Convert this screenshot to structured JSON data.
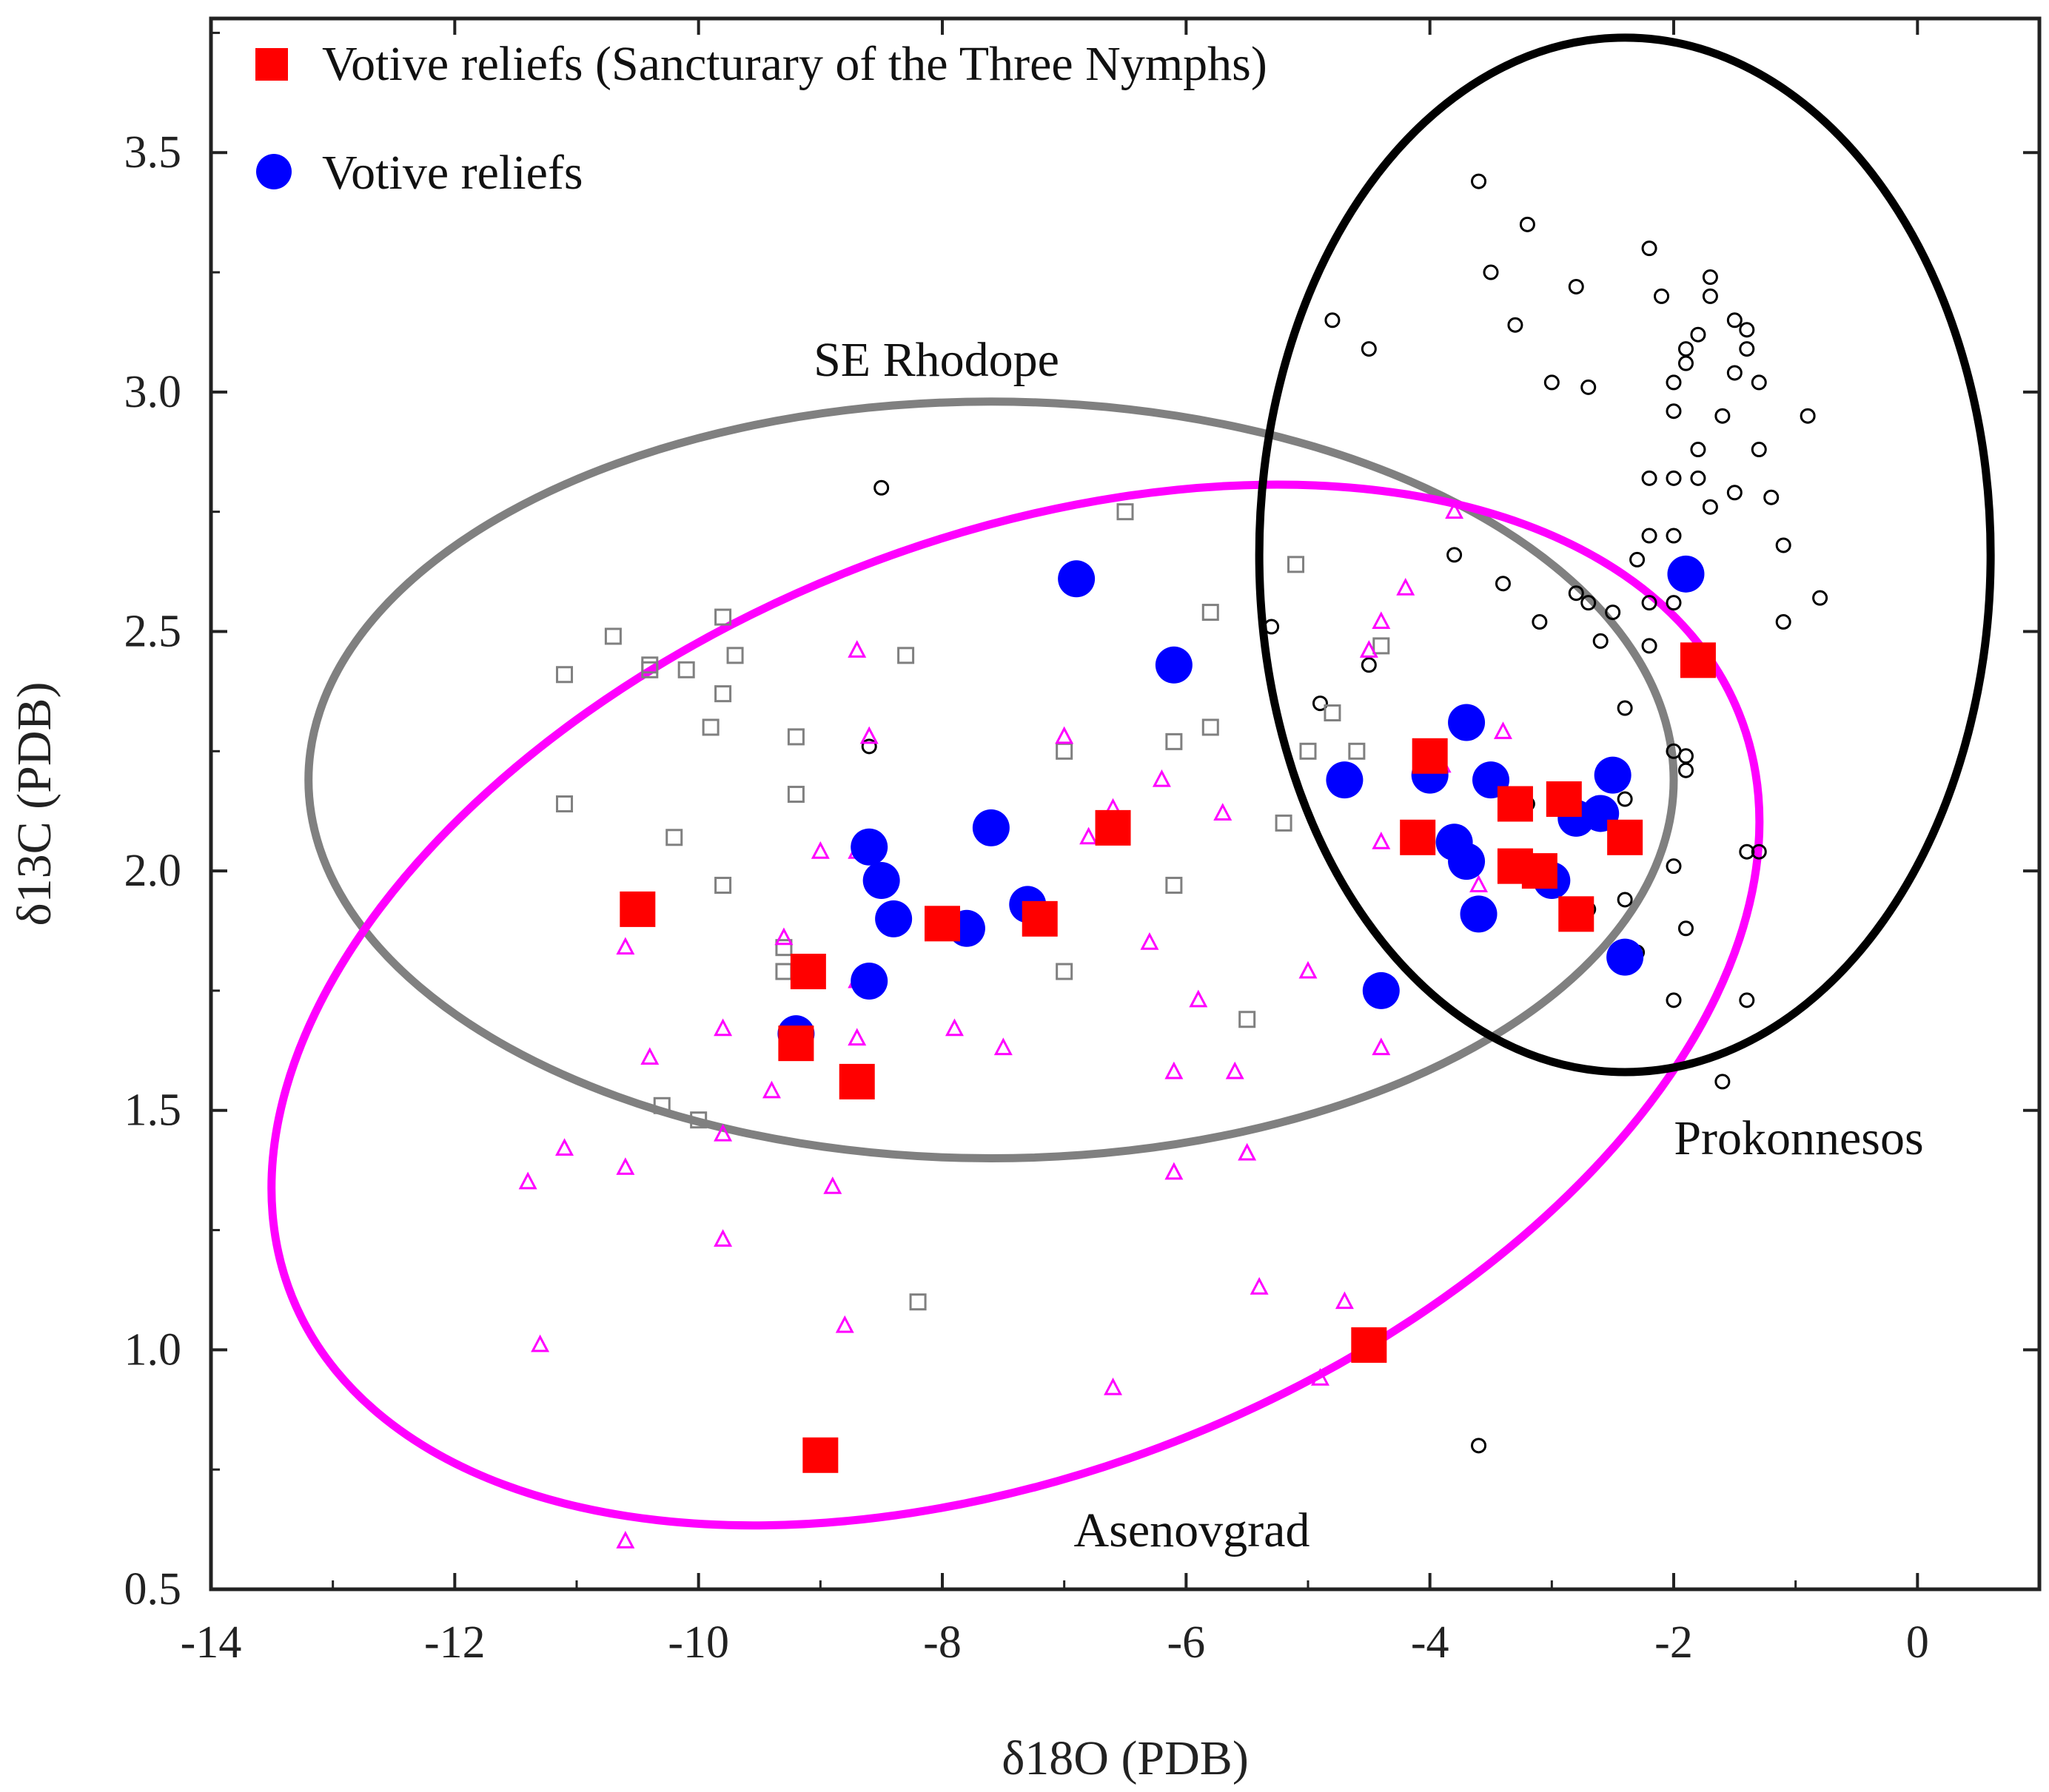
{
  "chart_data": {
    "type": "scatter",
    "xlabel": "δ18O (PDB)",
    "ylabel": "δ13C (PDB)",
    "xlim": [
      -14,
      1
    ],
    "ylim": [
      0.5,
      3.78
    ],
    "xticks": [
      -14,
      -12,
      -10,
      -8,
      -6,
      -4,
      -2,
      0
    ],
    "yticks": [
      0.5,
      1.0,
      1.5,
      2.0,
      2.5,
      3.0,
      3.5
    ],
    "grid": false,
    "legend_position": "top-left",
    "legend": [
      {
        "label": "Votive reliefs (Sancturary of the Three Nymphs)",
        "marker": "square",
        "color": "#ff0000"
      },
      {
        "label": "Votive reliefs",
        "marker": "circle",
        "color": "#0000ff"
      }
    ],
    "regions": [
      {
        "name": "SE Rhodope",
        "color": "#808080",
        "cx": -7.6,
        "cy": 2.19,
        "rx": 5.6,
        "ry": 0.79,
        "angle": 0
      },
      {
        "name": "Asenovgrad",
        "color": "#ff00ff",
        "cx": -7.4,
        "cy": 1.72,
        "rx": 6.4,
        "ry": 0.97,
        "angle": 22
      },
      {
        "name": "Prokonnesos",
        "color": "#000000",
        "cx": -2.4,
        "cy": 2.66,
        "rx": 3.0,
        "ry": 1.08,
        "angle": 0
      }
    ],
    "region_labels": [
      "SE Rhodope",
      "Asenovgrad",
      "Prokonnesos"
    ],
    "series": [
      {
        "name": "Votive reliefs (Sancturary of the Three Nymphs)",
        "marker": "square-filled",
        "color": "#ff0000",
        "points": [
          [
            -10.5,
            1.92
          ],
          [
            -9.1,
            1.79
          ],
          [
            -9.2,
            1.64
          ],
          [
            -8.7,
            1.56
          ],
          [
            -9.0,
            0.78
          ],
          [
            -8.0,
            1.89
          ],
          [
            -7.2,
            1.9
          ],
          [
            -6.6,
            2.09
          ],
          [
            -4.0,
            2.24
          ],
          [
            -4.1,
            2.07
          ],
          [
            -3.3,
            2.14
          ],
          [
            -3.3,
            2.01
          ],
          [
            -3.1,
            2.0
          ],
          [
            -2.9,
            2.15
          ],
          [
            -2.8,
            1.91
          ],
          [
            -2.4,
            2.07
          ],
          [
            -1.8,
            2.44
          ],
          [
            -4.5,
            1.01
          ]
        ]
      },
      {
        "name": "Votive reliefs",
        "marker": "circle-filled",
        "color": "#0000ff",
        "points": [
          [
            -6.9,
            2.61
          ],
          [
            -6.1,
            2.43
          ],
          [
            -8.6,
            2.05
          ],
          [
            -8.5,
            1.98
          ],
          [
            -8.4,
            1.9
          ],
          [
            -8.6,
            1.77
          ],
          [
            -9.2,
            1.66
          ],
          [
            -7.8,
            1.88
          ],
          [
            -7.6,
            2.09
          ],
          [
            -7.3,
            1.93
          ],
          [
            -4.7,
            2.19
          ],
          [
            -4.4,
            1.75
          ],
          [
            -4.0,
            2.2
          ],
          [
            -3.7,
            2.31
          ],
          [
            -3.5,
            2.19
          ],
          [
            -3.8,
            2.06
          ],
          [
            -3.7,
            2.02
          ],
          [
            -3.6,
            1.91
          ],
          [
            -3.0,
            1.98
          ],
          [
            -2.8,
            2.11
          ],
          [
            -2.6,
            2.12
          ],
          [
            -2.5,
            2.2
          ],
          [
            -2.4,
            1.82
          ],
          [
            -1.9,
            2.62
          ]
        ]
      },
      {
        "name": "Prokonnesos samples",
        "marker": "circle-open",
        "color": "#000000",
        "points": [
          [
            -3.6,
            3.44
          ],
          [
            -3.2,
            3.35
          ],
          [
            -3.5,
            3.25
          ],
          [
            -3.3,
            3.14
          ],
          [
            -2.8,
            3.22
          ],
          [
            -2.2,
            3.3
          ],
          [
            -2.1,
            3.2
          ],
          [
            -1.7,
            3.24
          ],
          [
            -1.7,
            3.2
          ],
          [
            -1.8,
            3.12
          ],
          [
            -1.9,
            3.09
          ],
          [
            -1.5,
            3.15
          ],
          [
            -1.4,
            3.13
          ],
          [
            -1.4,
            3.09
          ],
          [
            -1.3,
            3.02
          ],
          [
            -1.5,
            3.04
          ],
          [
            -1.9,
            3.06
          ],
          [
            -2.0,
            3.02
          ],
          [
            -2.0,
            2.96
          ],
          [
            -1.6,
            2.95
          ],
          [
            -1.8,
            2.88
          ],
          [
            -2.0,
            2.82
          ],
          [
            -1.8,
            2.82
          ],
          [
            -1.5,
            2.79
          ],
          [
            -1.7,
            2.76
          ],
          [
            -1.3,
            2.88
          ],
          [
            -0.9,
            2.95
          ],
          [
            -1.2,
            2.78
          ],
          [
            -1.1,
            2.68
          ],
          [
            -0.8,
            2.57
          ],
          [
            -1.1,
            2.52
          ],
          [
            -2.0,
            2.7
          ],
          [
            -2.2,
            2.7
          ],
          [
            -2.3,
            2.65
          ],
          [
            -2.0,
            2.56
          ],
          [
            -2.2,
            2.56
          ],
          [
            -2.2,
            2.47
          ],
          [
            -2.5,
            2.54
          ],
          [
            -2.6,
            2.48
          ],
          [
            -2.7,
            2.56
          ],
          [
            -2.8,
            2.58
          ],
          [
            -3.1,
            2.52
          ],
          [
            -3.4,
            2.6
          ],
          [
            -3.8,
            2.66
          ],
          [
            -2.2,
            2.82
          ],
          [
            -4.8,
            3.15
          ],
          [
            -4.5,
            3.09
          ],
          [
            -3.0,
            3.02
          ],
          [
            -2.7,
            3.01
          ],
          [
            -8.5,
            2.8
          ],
          [
            -5.3,
            2.51
          ],
          [
            -4.5,
            2.43
          ],
          [
            -4.9,
            2.35
          ],
          [
            -2.4,
            2.34
          ],
          [
            -8.6,
            2.26
          ],
          [
            -2.0,
            2.25
          ],
          [
            -1.9,
            2.24
          ],
          [
            -1.9,
            2.21
          ],
          [
            -2.5,
            2.19
          ],
          [
            -2.4,
            2.15
          ],
          [
            -3.2,
            2.14
          ],
          [
            -2.0,
            2.01
          ],
          [
            -1.4,
            2.04
          ],
          [
            -1.3,
            2.04
          ],
          [
            -2.7,
            1.92
          ],
          [
            -2.4,
            1.94
          ],
          [
            -1.9,
            1.88
          ],
          [
            -2.3,
            1.83
          ],
          [
            -2.0,
            1.73
          ],
          [
            -1.4,
            1.73
          ],
          [
            -1.6,
            1.56
          ],
          [
            -3.6,
            0.8
          ]
        ]
      },
      {
        "name": "SE Rhodope samples",
        "marker": "square-open",
        "color": "#808080",
        "points": [
          [
            -6.5,
            2.75
          ],
          [
            -5.1,
            2.64
          ],
          [
            -5.8,
            2.54
          ],
          [
            -4.4,
            2.47
          ],
          [
            -9.8,
            2.53
          ],
          [
            -10.7,
            2.49
          ],
          [
            -11.1,
            2.41
          ],
          [
            -10.4,
            2.43
          ],
          [
            -10.4,
            2.42
          ],
          [
            -10.1,
            2.42
          ],
          [
            -9.7,
            2.45
          ],
          [
            -9.8,
            2.37
          ],
          [
            -8.3,
            2.45
          ],
          [
            -9.9,
            2.3
          ],
          [
            -9.2,
            2.28
          ],
          [
            -7.0,
            2.25
          ],
          [
            -6.1,
            2.27
          ],
          [
            -5.8,
            2.3
          ],
          [
            -5.0,
            2.25
          ],
          [
            -4.8,
            2.33
          ],
          [
            -4.6,
            2.25
          ],
          [
            -9.2,
            2.16
          ],
          [
            -11.1,
            2.14
          ],
          [
            -10.2,
            2.07
          ],
          [
            -5.2,
            2.1
          ],
          [
            -9.8,
            1.97
          ],
          [
            -6.1,
            1.97
          ],
          [
            -9.3,
            1.84
          ],
          [
            -9.3,
            1.79
          ],
          [
            -7.0,
            1.79
          ],
          [
            -5.5,
            1.69
          ],
          [
            -10.3,
            1.51
          ],
          [
            -10.0,
            1.48
          ],
          [
            -8.2,
            1.1
          ]
        ]
      },
      {
        "name": "Asenovgrad samples",
        "marker": "triangle-open",
        "color": "#ff00ff",
        "points": [
          [
            -3.8,
            2.75
          ],
          [
            -4.2,
            2.59
          ],
          [
            -4.4,
            2.52
          ],
          [
            -4.5,
            2.46
          ],
          [
            -8.7,
            2.46
          ],
          [
            -8.6,
            2.28
          ],
          [
            -7.0,
            2.28
          ],
          [
            -6.2,
            2.19
          ],
          [
            -6.6,
            2.13
          ],
          [
            -5.7,
            2.12
          ],
          [
            -3.4,
            2.29
          ],
          [
            -3.9,
            2.22
          ],
          [
            -4.4,
            2.06
          ],
          [
            -8.7,
            2.04
          ],
          [
            -9.0,
            2.04
          ],
          [
            -6.8,
            2.07
          ],
          [
            -3.6,
            1.97
          ],
          [
            -8.0,
            1.9
          ],
          [
            -6.3,
            1.85
          ],
          [
            -10.6,
            1.84
          ],
          [
            -9.3,
            1.86
          ],
          [
            -8.7,
            1.77
          ],
          [
            -5.0,
            1.79
          ],
          [
            -5.9,
            1.73
          ],
          [
            -7.9,
            1.67
          ],
          [
            -9.8,
            1.67
          ],
          [
            -8.7,
            1.65
          ],
          [
            -7.5,
            1.63
          ],
          [
            -10.4,
            1.61
          ],
          [
            -6.1,
            1.58
          ],
          [
            -5.6,
            1.58
          ],
          [
            -4.4,
            1.63
          ],
          [
            -9.4,
            1.54
          ],
          [
            -9.8,
            1.45
          ],
          [
            -11.1,
            1.42
          ],
          [
            -11.4,
            1.35
          ],
          [
            -10.6,
            1.38
          ],
          [
            -8.9,
            1.34
          ],
          [
            -5.5,
            1.41
          ],
          [
            -6.1,
            1.37
          ],
          [
            -9.8,
            1.23
          ],
          [
            -5.4,
            1.13
          ],
          [
            -4.7,
            1.1
          ],
          [
            -8.8,
            1.05
          ],
          [
            -11.3,
            1.01
          ],
          [
            -6.6,
            0.92
          ],
          [
            -4.9,
            0.94
          ],
          [
            -10.6,
            0.6
          ]
        ]
      }
    ]
  }
}
